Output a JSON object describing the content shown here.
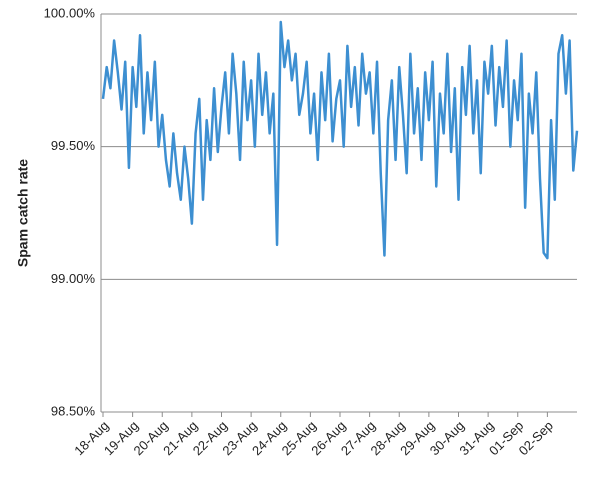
{
  "chart_data": {
    "type": "line",
    "y_label": "Spam catch rate",
    "categories": [
      "18-Aug",
      null,
      null,
      null,
      null,
      null,
      null,
      null,
      "19-Aug",
      null,
      null,
      null,
      null,
      null,
      null,
      null,
      "20-Aug",
      null,
      null,
      null,
      null,
      null,
      null,
      null,
      "21-Aug",
      null,
      null,
      null,
      null,
      null,
      null,
      null,
      "22-Aug",
      null,
      null,
      null,
      null,
      null,
      null,
      null,
      "23-Aug",
      null,
      null,
      null,
      null,
      null,
      null,
      null,
      "24-Aug",
      null,
      null,
      null,
      null,
      null,
      null,
      null,
      "25-Aug",
      null,
      null,
      null,
      null,
      null,
      null,
      null,
      "26-Aug",
      null,
      null,
      null,
      null,
      null,
      null,
      null,
      "27-Aug",
      null,
      null,
      null,
      null,
      null,
      null,
      null,
      "28-Aug",
      null,
      null,
      null,
      null,
      null,
      null,
      null,
      "29-Aug",
      null,
      null,
      null,
      null,
      null,
      null,
      null,
      "30-Aug",
      null,
      null,
      null,
      null,
      null,
      null,
      null,
      "31-Aug",
      null,
      null,
      null,
      null,
      null,
      null,
      null,
      "01-Sep",
      null,
      null,
      null,
      null,
      null,
      null,
      null,
      "02-Sep",
      null,
      null,
      null,
      null,
      null,
      null,
      null,
      null
    ],
    "series": [
      {
        "name": "Spam catch rate",
        "color": "#3d8fd1",
        "values": [
          99.68,
          99.8,
          99.72,
          99.9,
          99.78,
          99.64,
          99.82,
          99.42,
          99.8,
          99.65,
          99.92,
          99.55,
          99.78,
          99.6,
          99.82,
          99.5,
          99.62,
          99.45,
          99.35,
          99.55,
          99.4,
          99.3,
          99.5,
          99.38,
          99.21,
          99.55,
          99.68,
          99.3,
          99.6,
          99.45,
          99.72,
          99.48,
          99.65,
          99.78,
          99.55,
          99.85,
          99.7,
          99.45,
          99.82,
          99.6,
          99.75,
          99.5,
          99.85,
          99.62,
          99.78,
          99.55,
          99.7,
          99.13,
          99.97,
          99.8,
          99.9,
          99.75,
          99.85,
          99.62,
          99.7,
          99.82,
          99.55,
          99.7,
          99.45,
          99.78,
          99.6,
          99.85,
          99.52,
          99.68,
          99.75,
          99.5,
          99.88,
          99.65,
          99.8,
          99.58,
          99.85,
          99.7,
          99.78,
          99.55,
          99.82,
          99.4,
          99.09,
          99.6,
          99.75,
          99.45,
          99.8,
          99.62,
          99.4,
          99.85,
          99.55,
          99.72,
          99.45,
          99.78,
          99.6,
          99.82,
          99.35,
          99.7,
          99.55,
          99.85,
          99.48,
          99.72,
          99.3,
          99.8,
          99.62,
          99.88,
          99.55,
          99.75,
          99.4,
          99.82,
          99.7,
          99.88,
          99.58,
          99.8,
          99.65,
          99.9,
          99.5,
          99.75,
          99.6,
          99.85,
          99.27,
          99.7,
          99.55,
          99.78,
          99.38,
          99.1,
          99.08,
          99.6,
          99.3,
          99.85,
          99.92,
          99.7,
          99.9,
          99.41,
          99.56
        ]
      }
    ],
    "ylim": [
      98.5,
      100
    ],
    "yticks": [
      {
        "value": 98.5,
        "label": "98.50%"
      },
      {
        "value": 99.0,
        "label": "99.00%"
      },
      {
        "value": 99.5,
        "label": "99.50%"
      },
      {
        "value": 100,
        "label": "100.00%"
      }
    ],
    "grid": true
  }
}
